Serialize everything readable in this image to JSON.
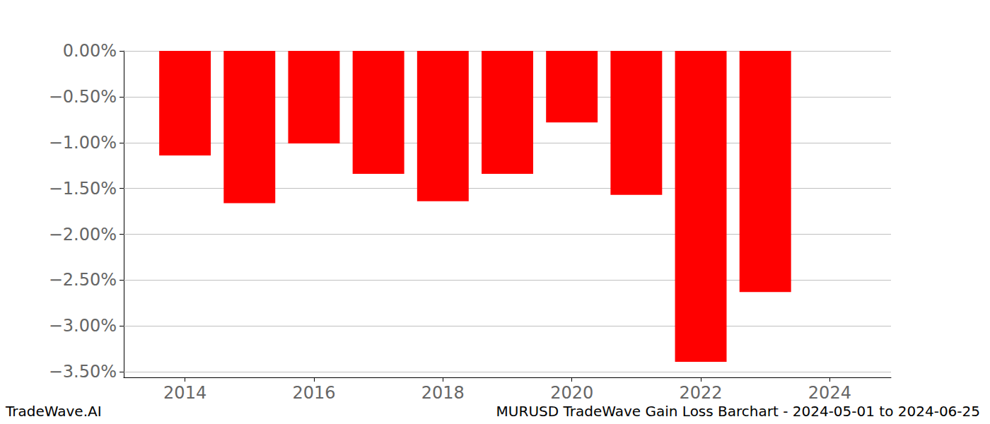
{
  "chart_data": {
    "type": "bar",
    "title": "MURUSD TradeWave Gain Loss Barchart - 2024-05-01 to 2024-06-25",
    "annotations": [
      "TradeWave.AI"
    ],
    "x": [
      2014,
      2015,
      2016,
      2017,
      2018,
      2019,
      2020,
      2021,
      2022,
      2023
    ],
    "values": [
      -1.14,
      -1.66,
      -1.01,
      -1.34,
      -1.64,
      -1.34,
      -0.78,
      -1.57,
      -3.39,
      -2.63
    ],
    "color": "#ff0000",
    "xlim": [
      2013.05,
      2024.95
    ],
    "xticks": [
      2014,
      2016,
      2018,
      2020,
      2022,
      2024
    ],
    "ylim": [
      -3.56,
      0
    ],
    "yticks": [
      {
        "value": 0,
        "label": "0.00%"
      },
      {
        "value": -0.5,
        "label": "−0.50%"
      },
      {
        "value": -1,
        "label": "−1.00%"
      },
      {
        "value": -1.5,
        "label": "−1.50%"
      },
      {
        "value": -2,
        "label": "−2.00%"
      },
      {
        "value": -2.5,
        "label": "−2.50%"
      },
      {
        "value": -3,
        "label": "−3.00%"
      },
      {
        "value": -3.5,
        "label": "−3.50%"
      }
    ],
    "grid": true
  }
}
